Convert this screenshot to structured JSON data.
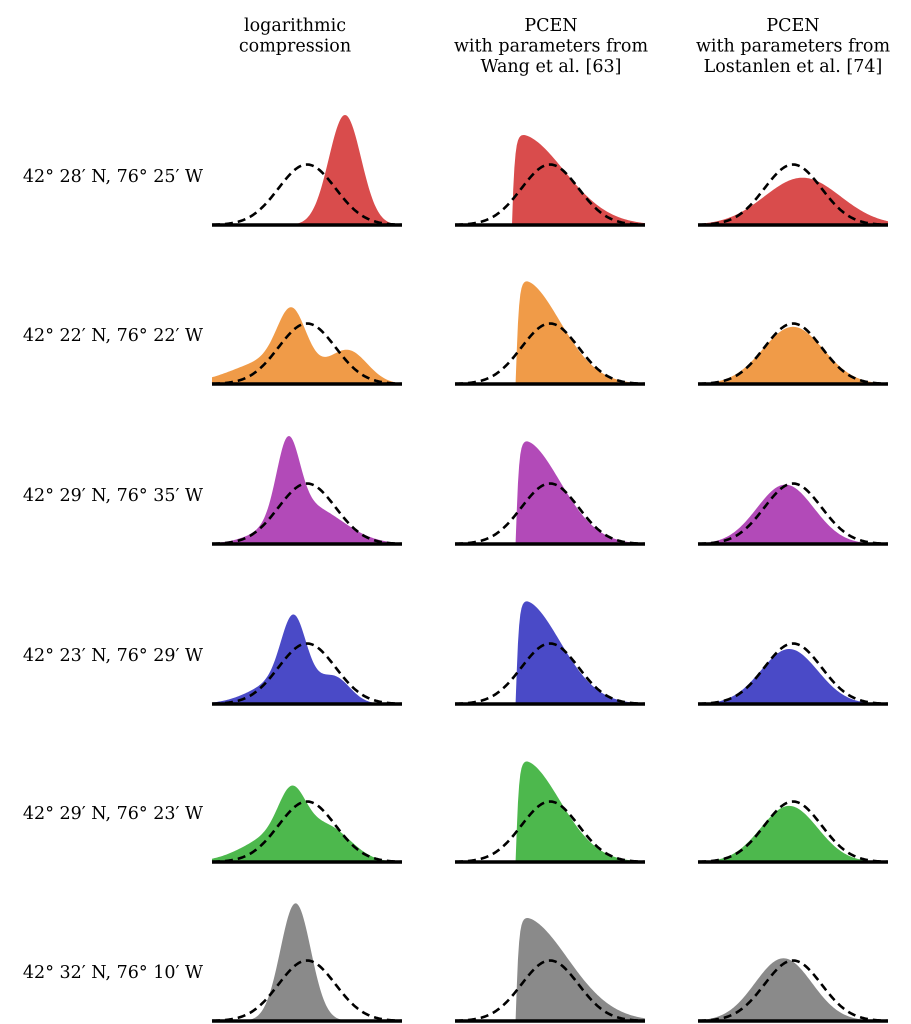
{
  "chart_data": {
    "type": "area",
    "columns": [
      {
        "title_lines": [
          "logarithmic",
          "compression"
        ]
      },
      {
        "title_lines": [
          "PCEN",
          "with parameters from",
          "Wang et al. [63]"
        ]
      },
      {
        "title_lines": [
          "PCEN",
          "with parameters from",
          "Lostanlen et al. [74]"
        ]
      }
    ],
    "rows": [
      {
        "label": "42° 28′ N, 76° 25′ W",
        "color": "#d94c4c",
        "panels": [
          {
            "components": [
              {
                "mu": 0.7,
                "sigma": 0.085,
                "amp": 1.0,
                "onset": null
              }
            ]
          },
          {
            "components": [
              {
                "mu": 0.33,
                "sigma": 0.24,
                "amp": 0.83,
                "onset": 0.3
              }
            ]
          },
          {
            "components": [
              {
                "mu": 0.55,
                "sigma": 0.2,
                "amp": 0.43,
                "onset": null
              }
            ]
          }
        ]
      },
      {
        "label": "42° 22′ N, 76° 22′ W",
        "color": "#f09b48",
        "panels": [
          {
            "components": [
              {
                "mu": 0.42,
                "sigma": 0.075,
                "amp": 0.5,
                "onset": null
              },
              {
                "mu": 0.32,
                "sigma": 0.2,
                "amp": 0.22,
                "onset": null
              },
              {
                "mu": 0.72,
                "sigma": 0.1,
                "amp": 0.28,
                "onset": null
              }
            ]
          },
          {
            "components": [
              {
                "mu": 0.33,
                "sigma": 0.2,
                "amp": 0.95,
                "onset": 0.32
              }
            ]
          },
          {
            "components": [
              {
                "mu": 0.5,
                "sigma": 0.16,
                "amp": 0.52,
                "onset": null
              }
            ]
          }
        ]
      },
      {
        "label": "42° 29′ N, 76° 35′ W",
        "color": "#b24ab8",
        "panels": [
          {
            "components": [
              {
                "mu": 0.4,
                "sigma": 0.06,
                "amp": 0.68,
                "onset": null
              },
              {
                "mu": 0.5,
                "sigma": 0.18,
                "amp": 0.35,
                "onset": null
              }
            ]
          },
          {
            "components": [
              {
                "mu": 0.33,
                "sigma": 0.2,
                "amp": 0.95,
                "onset": 0.32
              }
            ]
          },
          {
            "components": [
              {
                "mu": 0.46,
                "sigma": 0.15,
                "amp": 0.54,
                "onset": null
              }
            ]
          }
        ]
      },
      {
        "label": "42° 23′ N, 76° 29′ W",
        "color": "#4a4ac7",
        "panels": [
          {
            "components": [
              {
                "mu": 0.43,
                "sigma": 0.065,
                "amp": 0.6,
                "onset": null
              },
              {
                "mu": 0.38,
                "sigma": 0.16,
                "amp": 0.22,
                "onset": null
              },
              {
                "mu": 0.65,
                "sigma": 0.08,
                "amp": 0.2,
                "onset": null
              }
            ]
          },
          {
            "components": [
              {
                "mu": 0.33,
                "sigma": 0.2,
                "amp": 0.95,
                "onset": 0.32
              }
            ]
          },
          {
            "components": [
              {
                "mu": 0.48,
                "sigma": 0.15,
                "amp": 0.5,
                "onset": null
              }
            ]
          }
        ]
      },
      {
        "label": "42° 29′ N, 76° 23′ W",
        "color": "#4db84d",
        "panels": [
          {
            "components": [
              {
                "mu": 0.42,
                "sigma": 0.07,
                "amp": 0.4,
                "onset": null
              },
              {
                "mu": 0.35,
                "sigma": 0.17,
                "amp": 0.25,
                "onset": null
              },
              {
                "mu": 0.62,
                "sigma": 0.12,
                "amp": 0.26,
                "onset": null
              }
            ]
          },
          {
            "components": [
              {
                "mu": 0.33,
                "sigma": 0.2,
                "amp": 0.93,
                "onset": 0.32
              }
            ]
          },
          {
            "components": [
              {
                "mu": 0.48,
                "sigma": 0.15,
                "amp": 0.51,
                "onset": null
              }
            ]
          }
        ]
      },
      {
        "label": "42° 32′ N, 76° 10′ W",
        "color": "#8a8a8a",
        "panels": [
          {
            "components": [
              {
                "mu": 0.44,
                "sigma": 0.08,
                "amp": 1.07,
                "onset": null
              }
            ]
          },
          {
            "components": [
              {
                "mu": 0.33,
                "sigma": 0.24,
                "amp": 0.95,
                "onset": 0.32
              }
            ]
          },
          {
            "components": [
              {
                "mu": 0.45,
                "sigma": 0.15,
                "amp": 0.57,
                "onset": null
              }
            ]
          }
        ]
      }
    ],
    "reference_curve": {
      "style": "dashed",
      "mu": 0.5,
      "sigma": 0.15,
      "amp": 0.55
    },
    "x_range": [
      0,
      1
    ],
    "axes_visible": false,
    "grid": false
  }
}
